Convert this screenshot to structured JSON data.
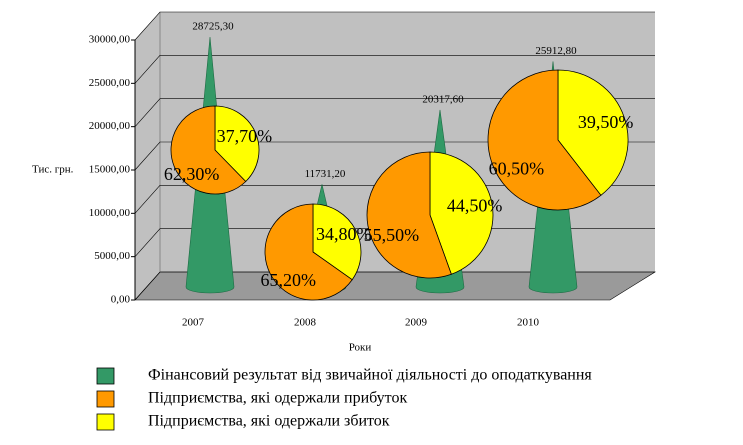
{
  "chart_data": [
    {
      "type": "bar",
      "ylabel": "Тис. грн.",
      "xlabel": "Роки",
      "categories": [
        "2007",
        "2008",
        "2009",
        "2010"
      ],
      "series": [
        {
          "name": "Фінансовий результат від звичайної діяльності до оподаткування",
          "color": "#339966",
          "values": [
            28725.3,
            11731.2,
            20317.6,
            25912.8
          ],
          "value_labels": [
            "28725,30",
            "11731,20",
            "20317,60",
            "25912,80"
          ]
        }
      ],
      "ylim": [
        0,
        30000
      ],
      "yticks": [
        {
          "value": 0,
          "label": "0,00"
        },
        {
          "value": 5000,
          "label": "5000,00"
        },
        {
          "value": 10000,
          "label": "10000,00"
        },
        {
          "value": 15000,
          "label": "15000,00"
        },
        {
          "value": 20000,
          "label": "20000,00"
        },
        {
          "value": 25000,
          "label": "25000,00"
        },
        {
          "value": 30000,
          "label": "30000,00"
        }
      ],
      "grid": true
    },
    {
      "type": "pie",
      "series": [
        {
          "name": "Підприємства, які одержали прибуток",
          "color": "#ff9900",
          "values": [
            62.3,
            65.2,
            55.5,
            60.5
          ],
          "value_labels": [
            "62,30%",
            "65,20%",
            "55,50%",
            "60,50%"
          ]
        },
        {
          "name": "Підприємства, які одержали збиток",
          "color": "#ffff00",
          "values": [
            37.7,
            34.8,
            44.5,
            39.5
          ],
          "value_labels": [
            "37,70%",
            "34,80%",
            "44,50%",
            "39,50%"
          ]
        }
      ]
    }
  ]
}
